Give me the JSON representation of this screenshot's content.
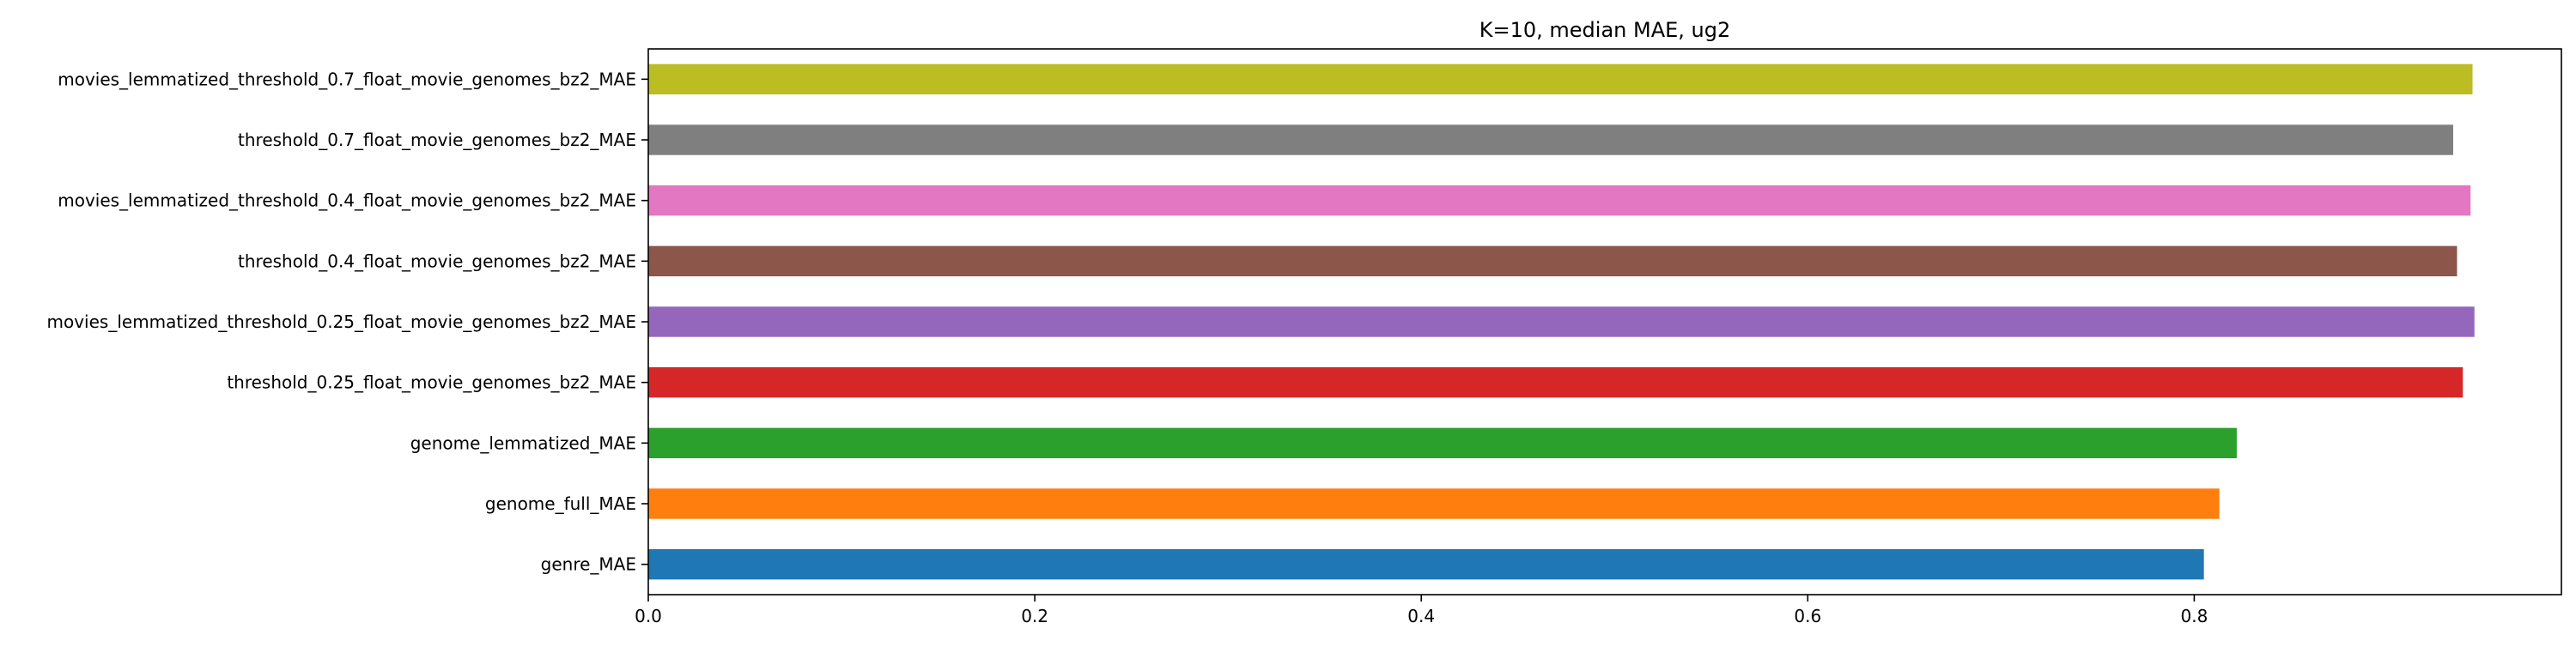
{
  "chart_data": {
    "type": "bar",
    "orientation": "horizontal",
    "title": "K=10, median MAE, ug2",
    "xlabel": "",
    "ylabel": "",
    "xlim": [
      0,
      0.99
    ],
    "xticks": [
      {
        "value": 0.0,
        "label": "0.0"
      },
      {
        "value": 0.2,
        "label": "0.2"
      },
      {
        "value": 0.4,
        "label": "0.4"
      },
      {
        "value": 0.6,
        "label": "0.6"
      },
      {
        "value": 0.8,
        "label": "0.8"
      }
    ],
    "grid": false,
    "legend": false,
    "categories": [
      "genre_MAE",
      "genome_full_MAE",
      "genome_lemmatized_MAE",
      "threshold_0.25_float_movie_genomes_bz2_MAE",
      "movies_lemmatized_threshold_0.25_float_movie_genomes_bz2_MAE",
      "threshold_0.4_float_movie_genomes_bz2_MAE",
      "movies_lemmatized_threshold_0.4_float_movie_genomes_bz2_MAE",
      "threshold_0.7_float_movie_genomes_bz2_MAE",
      "movies_lemmatized_threshold_0.7_float_movie_genomes_bz2_MAE"
    ],
    "values": [
      0.805,
      0.813,
      0.822,
      0.939,
      0.945,
      0.936,
      0.943,
      0.934,
      0.944
    ],
    "colors": [
      "#1f77b4",
      "#ff7f0e",
      "#2ca02c",
      "#d62728",
      "#9467bd",
      "#8c564b",
      "#e377c2",
      "#7f7f7f",
      "#bcbd22"
    ]
  }
}
